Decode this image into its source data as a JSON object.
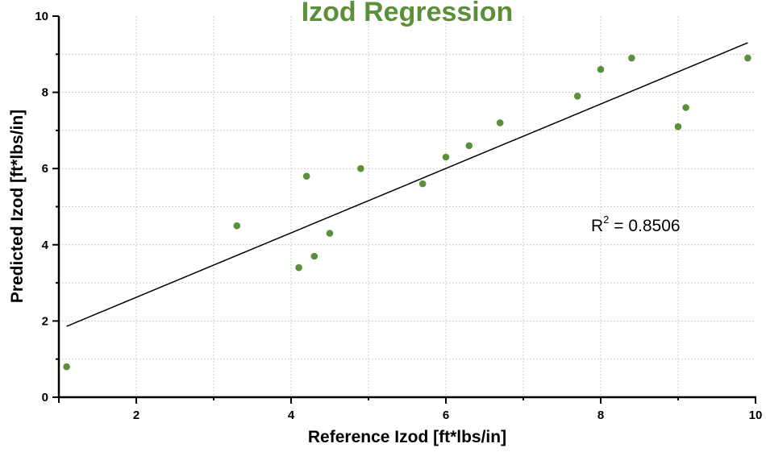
{
  "chart_data": {
    "type": "scatter",
    "title": "Izod Regression",
    "xlabel": "Reference Izod [ft*lbs/in]",
    "ylabel": "Predicted Izod [ft*lbs/in]",
    "xlim": [
      1,
      10
    ],
    "ylim": [
      0,
      10
    ],
    "x_major_ticks": [
      2,
      4,
      6,
      8,
      10
    ],
    "x_minor_ticks": [
      3,
      5,
      7,
      9
    ],
    "y_major_ticks": [
      0,
      2,
      4,
      6,
      8,
      10
    ],
    "y_minor_ticks": [
      1,
      3,
      5,
      7,
      9
    ],
    "x_tick_labels": [
      "2",
      "4",
      "6",
      "8",
      "10"
    ],
    "y_tick_labels": [
      "0",
      "2",
      "4",
      "6",
      "8",
      "10"
    ],
    "grid": true,
    "marker_color": "#5b8f3a",
    "title_color": "#5b8f3a",
    "series": [
      {
        "name": "Izod",
        "points": [
          {
            "x": 1.1,
            "y": 0.8
          },
          {
            "x": 3.3,
            "y": 4.5
          },
          {
            "x": 4.1,
            "y": 3.4
          },
          {
            "x": 4.2,
            "y": 5.8
          },
          {
            "x": 4.3,
            "y": 3.7
          },
          {
            "x": 4.5,
            "y": 4.3
          },
          {
            "x": 4.9,
            "y": 6.0
          },
          {
            "x": 5.7,
            "y": 5.6
          },
          {
            "x": 6.0,
            "y": 6.3
          },
          {
            "x": 6.3,
            "y": 6.6
          },
          {
            "x": 6.7,
            "y": 7.2
          },
          {
            "x": 7.7,
            "y": 7.9
          },
          {
            "x": 8.0,
            "y": 8.6
          },
          {
            "x": 8.4,
            "y": 8.9
          },
          {
            "x": 9.0,
            "y": 7.1
          },
          {
            "x": 9.1,
            "y": 7.6
          },
          {
            "x": 9.9,
            "y": 8.9
          }
        ]
      }
    ],
    "regression_line": {
      "start": {
        "x": 1.1,
        "y": 1.86
      },
      "end": {
        "x": 9.9,
        "y": 9.3
      }
    },
    "annotation": {
      "r_label": "R",
      "r_sup": "2",
      "r_value": " = 0.8506"
    }
  }
}
